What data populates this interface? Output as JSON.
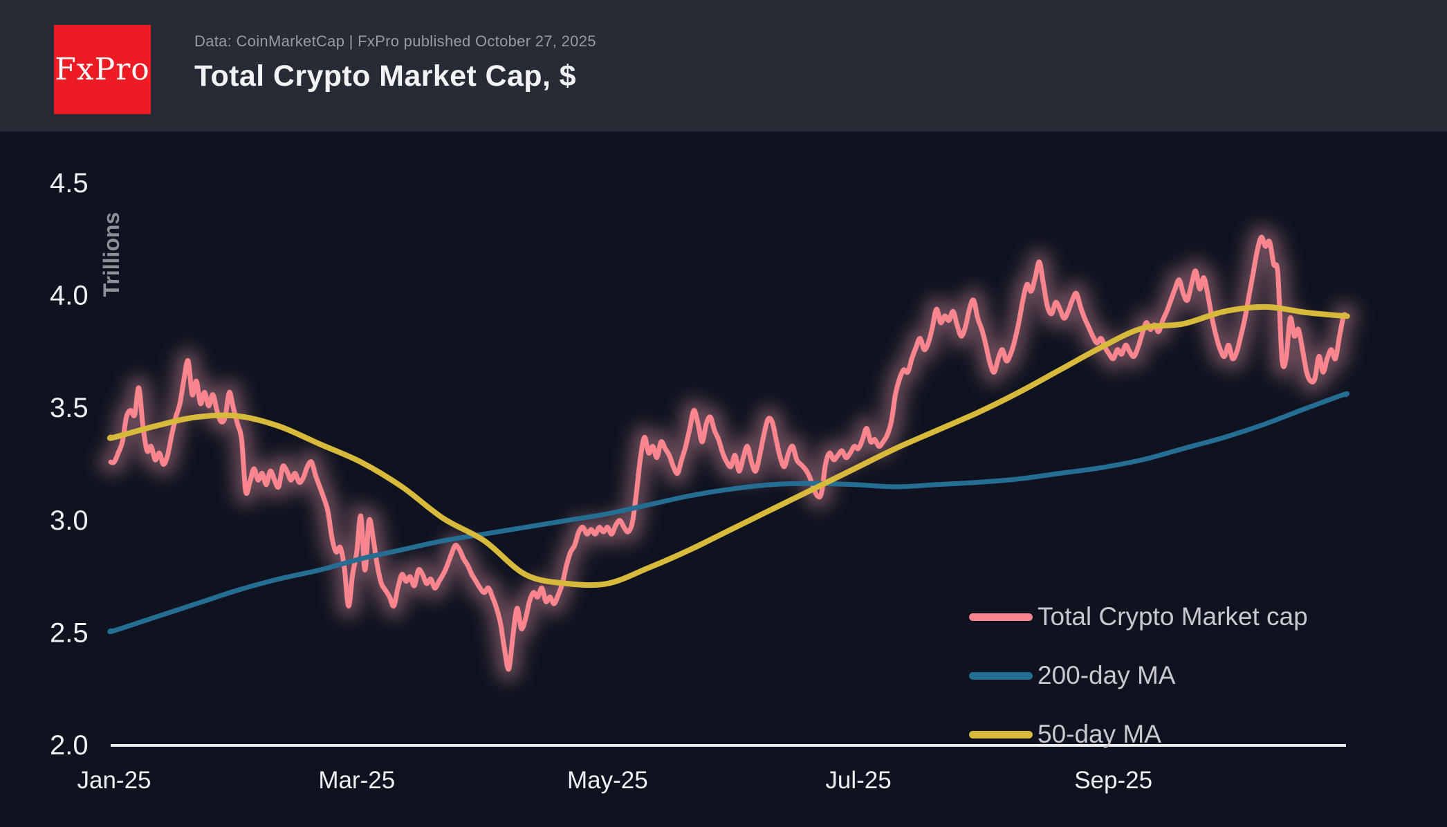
{
  "header": {
    "logo_text": "FxPro",
    "logo_bg": "#ed1c24",
    "subtitle": "Data: CoinMarketCap | FxPro published October 27, 2025",
    "title": "Total Crypto Market Cap, $"
  },
  "colors": {
    "header_bg": "#262b35",
    "chart_bg": "#0e131f",
    "axis": "#e8eaee",
    "tick_text": "#eef0f3",
    "subtitle_text": "#979ba3",
    "legend_text": "#c7c9ce",
    "ylabel_text": "#8c9099",
    "total_line": "#f9868f",
    "total_glow": "#f59fae",
    "ma200_line": "#256d92",
    "ma50_line": "#d7b93c"
  },
  "chart_data": {
    "type": "line",
    "title": "Total Crypto Market Cap, $",
    "ylabel": "Trillions",
    "y_unit": "trillion USD",
    "ylim": [
      2.0,
      4.6
    ],
    "grid": false,
    "legend_position": "bottom-right",
    "x_axis": {
      "unit": "days since 2025-01-01",
      "start_date": "2025-01-01",
      "end_date": "2025-10-27",
      "ticks": [
        {
          "day": 0,
          "label": "Jan-25"
        },
        {
          "day": 59,
          "label": "Mar-25"
        },
        {
          "day": 120,
          "label": "May-25"
        },
        {
          "day": 181,
          "label": "Jul-25"
        },
        {
          "day": 243,
          "label": "Sep-25"
        }
      ]
    },
    "y_axis": {
      "ticks": [
        {
          "value": 2.0,
          "label": "2.0"
        },
        {
          "value": 2.5,
          "label": "2.5"
        },
        {
          "value": 3.0,
          "label": "3.0"
        },
        {
          "value": 3.5,
          "label": "3.5"
        },
        {
          "value": 4.0,
          "label": "4.0"
        },
        {
          "value": 4.5,
          "label": "4.5"
        }
      ]
    },
    "series": [
      {
        "name": "Total Crypto Market cap",
        "color": "#f9868f",
        "width": 7,
        "glow": true,
        "start_day": 0,
        "step_days": 1,
        "values": [
          3.26,
          3.3,
          3.35,
          3.46,
          3.49,
          3.47,
          3.59,
          3.42,
          3.31,
          3.33,
          3.27,
          3.3,
          3.25,
          3.29,
          3.38,
          3.46,
          3.52,
          3.63,
          3.71,
          3.56,
          3.62,
          3.52,
          3.57,
          3.51,
          3.56,
          3.49,
          3.44,
          3.46,
          3.57,
          3.5,
          3.43,
          3.36,
          3.13,
          3.17,
          3.23,
          3.18,
          3.21,
          3.16,
          3.22,
          3.18,
          3.15,
          3.24,
          3.22,
          3.18,
          3.21,
          3.17,
          3.19,
          3.24,
          3.26,
          3.2,
          3.15,
          3.1,
          3.04,
          2.92,
          2.86,
          2.88,
          2.79,
          2.62,
          2.76,
          2.86,
          3.02,
          2.78,
          3.0,
          2.92,
          2.8,
          2.72,
          2.69,
          2.66,
          2.62,
          2.7,
          2.76,
          2.73,
          2.75,
          2.71,
          2.78,
          2.76,
          2.72,
          2.74,
          2.7,
          2.73,
          2.76,
          2.8,
          2.85,
          2.89,
          2.87,
          2.83,
          2.8,
          2.76,
          2.73,
          2.7,
          2.68,
          2.7,
          2.66,
          2.61,
          2.54,
          2.42,
          2.34,
          2.49,
          2.61,
          2.52,
          2.56,
          2.64,
          2.68,
          2.66,
          2.7,
          2.64,
          2.66,
          2.63,
          2.67,
          2.72,
          2.8,
          2.86,
          2.89,
          2.95,
          2.97,
          2.94,
          2.96,
          2.94,
          2.97,
          2.95,
          2.97,
          2.94,
          2.98,
          3.0,
          2.97,
          2.95,
          2.99,
          3.12,
          3.28,
          3.37,
          3.3,
          3.33,
          3.28,
          3.35,
          3.32,
          3.29,
          3.24,
          3.21,
          3.27,
          3.33,
          3.41,
          3.49,
          3.43,
          3.35,
          3.43,
          3.46,
          3.4,
          3.36,
          3.3,
          3.26,
          3.24,
          3.29,
          3.22,
          3.28,
          3.33,
          3.26,
          3.22,
          3.29,
          3.38,
          3.45,
          3.44,
          3.36,
          3.28,
          3.24,
          3.3,
          3.33,
          3.27,
          3.25,
          3.23,
          3.2,
          3.15,
          3.11,
          3.12,
          3.25,
          3.3,
          3.27,
          3.29,
          3.31,
          3.28,
          3.3,
          3.33,
          3.32,
          3.36,
          3.41,
          3.35,
          3.36,
          3.33,
          3.35,
          3.38,
          3.44,
          3.56,
          3.63,
          3.67,
          3.66,
          3.72,
          3.77,
          3.81,
          3.76,
          3.79,
          3.86,
          3.94,
          3.88,
          3.91,
          3.89,
          3.93,
          3.87,
          3.82,
          3.86,
          3.94,
          3.98,
          3.9,
          3.85,
          3.78,
          3.7,
          3.66,
          3.72,
          3.76,
          3.71,
          3.74,
          3.8,
          3.88,
          3.98,
          4.05,
          4.02,
          4.08,
          4.15,
          4.05,
          3.95,
          3.92,
          3.97,
          3.94,
          3.9,
          3.93,
          3.98,
          4.01,
          3.95,
          3.9,
          3.86,
          3.82,
          3.79,
          3.81,
          3.77,
          3.74,
          3.72,
          3.76,
          3.74,
          3.78,
          3.75,
          3.73,
          3.77,
          3.83,
          3.88,
          3.85,
          3.87,
          3.84,
          3.89,
          3.93,
          3.98,
          4.03,
          4.07,
          4.01,
          3.98,
          4.05,
          4.11,
          4.03,
          4.08,
          4.0,
          3.9,
          3.82,
          3.76,
          3.73,
          3.78,
          3.72,
          3.75,
          3.82,
          3.9,
          4.0,
          4.1,
          4.2,
          4.26,
          4.22,
          4.24,
          4.14,
          4.1,
          3.72,
          3.72,
          3.9,
          3.82,
          3.85,
          3.76,
          3.66,
          3.62,
          3.63,
          3.73,
          3.66,
          3.72,
          3.76,
          3.72,
          3.82,
          3.91
        ]
      },
      {
        "name": "200-day MA",
        "color": "#256d92",
        "width": 7,
        "glow": false,
        "days": [
          0,
          10,
          20,
          30,
          40,
          50,
          60,
          70,
          80,
          90,
          100,
          110,
          120,
          130,
          140,
          150,
          160,
          170,
          180,
          190,
          200,
          210,
          220,
          230,
          240,
          250,
          260,
          270,
          280,
          290,
          299
        ],
        "values": [
          2.51,
          2.57,
          2.63,
          2.69,
          2.74,
          2.78,
          2.83,
          2.87,
          2.91,
          2.94,
          2.97,
          3.0,
          3.03,
          3.07,
          3.11,
          3.14,
          3.16,
          3.165,
          3.16,
          3.15,
          3.16,
          3.17,
          3.185,
          3.21,
          3.235,
          3.27,
          3.32,
          3.37,
          3.43,
          3.5,
          3.56
        ]
      },
      {
        "name": "50-day MA",
        "color": "#d7b93c",
        "width": 8,
        "glow": false,
        "days": [
          0,
          10,
          20,
          30,
          40,
          50,
          60,
          70,
          80,
          90,
          100,
          110,
          120,
          130,
          140,
          150,
          160,
          170,
          180,
          190,
          200,
          210,
          220,
          230,
          240,
          250,
          260,
          270,
          280,
          290,
          299
        ],
        "values": [
          3.37,
          3.42,
          3.46,
          3.465,
          3.42,
          3.34,
          3.26,
          3.15,
          3.01,
          2.91,
          2.76,
          2.72,
          2.72,
          2.79,
          2.87,
          2.96,
          3.05,
          3.14,
          3.23,
          3.32,
          3.4,
          3.48,
          3.57,
          3.67,
          3.77,
          3.855,
          3.875,
          3.93,
          3.95,
          3.925,
          3.91
        ]
      }
    ]
  }
}
